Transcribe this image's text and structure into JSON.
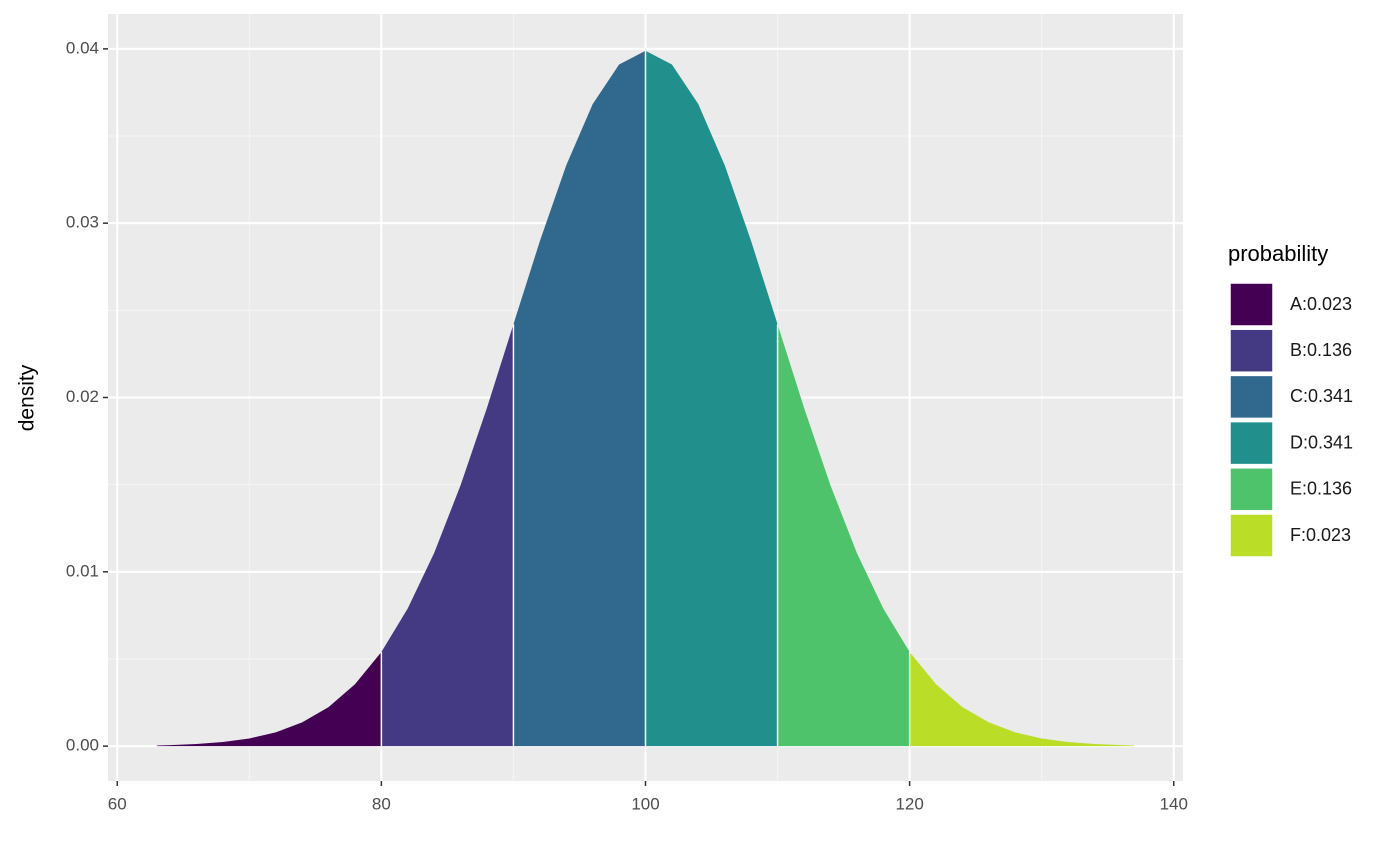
{
  "chart_data": {
    "type": "area",
    "y_label": "density",
    "legend_title": "probability",
    "xlim": [
      59.3,
      140.7
    ],
    "xticks": [
      60,
      80,
      100,
      120,
      140
    ],
    "ylim": [
      -0.002,
      0.042
    ],
    "yticks": [
      {
        "value": 0,
        "label": "0.00"
      },
      0.01,
      0.02,
      0.03,
      0.04
    ],
    "grid": true,
    "series": [
      {
        "name": "A:0.023",
        "color": "#440154",
        "x": [
          63,
          64,
          66,
          68,
          70,
          72,
          74,
          76,
          78,
          80
        ],
        "values": [
          4e-05,
          6e-05,
          0.00012,
          0.00024,
          0.00044,
          0.00079,
          0.00136,
          0.00224,
          0.00355,
          0.0054
        ]
      },
      {
        "name": "B:0.136",
        "color": "#443A83",
        "x": [
          80,
          82,
          84,
          86,
          88,
          90
        ],
        "values": [
          0.0054,
          0.0079,
          0.01109,
          0.01497,
          0.01942,
          0.0242
        ]
      },
      {
        "name": "C:0.341",
        "color": "#31688E",
        "x": [
          90,
          92,
          94,
          96,
          98,
          100
        ],
        "values": [
          0.0242,
          0.02897,
          0.03332,
          0.03683,
          0.0391,
          0.03989
        ]
      },
      {
        "name": "D:0.341",
        "color": "#21908C",
        "x": [
          100,
          102,
          104,
          106,
          108,
          110
        ],
        "values": [
          0.03989,
          0.0391,
          0.03683,
          0.03332,
          0.02897,
          0.0242
        ]
      },
      {
        "name": "E:0.136",
        "color": "#4EC36B",
        "x": [
          110,
          112,
          114,
          116,
          118,
          120
        ],
        "values": [
          0.0242,
          0.01942,
          0.01497,
          0.01109,
          0.0079,
          0.0054
        ]
      },
      {
        "name": "F:0.023",
        "color": "#BADE28",
        "x": [
          120,
          122,
          124,
          126,
          128,
          130,
          132,
          134,
          136,
          137
        ],
        "values": [
          0.0054,
          0.00355,
          0.00224,
          0.00136,
          0.00079,
          0.00044,
          0.00024,
          0.00012,
          6e-05,
          4e-05
        ]
      }
    ]
  }
}
